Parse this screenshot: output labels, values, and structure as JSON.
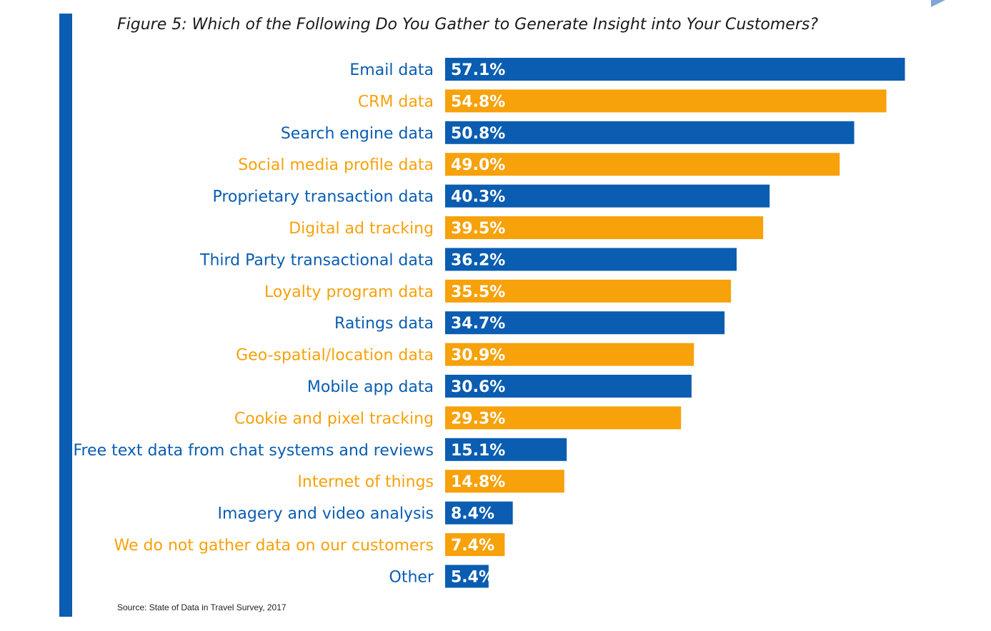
{
  "title": "Figure 5: Which of the Following Do You Gather to Generate Insight into Your Customers?",
  "source": "Source: State of Data in Travel Survey, 2017",
  "colors": {
    "blue": "#0a5db1",
    "orange": "#f7a10b",
    "text_blue": "#0a5db1",
    "text_orange": "#f7a10b"
  },
  "chart_data": {
    "type": "bar",
    "orientation": "horizontal",
    "categories": [
      "Email data",
      "CRM data",
      "Search engine data",
      "Social media profile data",
      "Proprietary transaction data",
      "Digital ad tracking",
      "Third Party transactional data",
      "Loyalty program data",
      "Ratings data",
      "Geo-spatial/location data",
      "Mobile app data",
      "Cookie and pixel tracking",
      "Free text data from chat systems and reviews",
      "Internet of things",
      "Imagery and video analysis",
      "We do not gather data on our customers",
      "Other"
    ],
    "values": [
      57.1,
      54.8,
      50.8,
      49.0,
      40.3,
      39.5,
      36.2,
      35.5,
      34.7,
      30.9,
      30.6,
      29.3,
      15.1,
      14.8,
      8.4,
      7.4,
      5.4
    ],
    "value_labels": [
      "57.1%",
      "54.8%",
      "50.8%",
      "49.0%",
      "40.3%",
      "39.5%",
      "36.2%",
      "35.5%",
      "34.7%",
      "30.9%",
      "30.6%",
      "29.3%",
      "15.1%",
      "14.8%",
      "8.4%",
      "7.4%",
      "5.4%"
    ],
    "bar_colors": [
      "blue",
      "orange",
      "blue",
      "orange",
      "blue",
      "orange",
      "blue",
      "orange",
      "blue",
      "orange",
      "blue",
      "orange",
      "blue",
      "orange",
      "blue",
      "orange",
      "blue"
    ],
    "title": "Figure 5: Which of the Following Do You Gather to Generate Insight into Your Customers?",
    "xlabel": "",
    "ylabel": "",
    "grid": false,
    "legend": "none"
  }
}
